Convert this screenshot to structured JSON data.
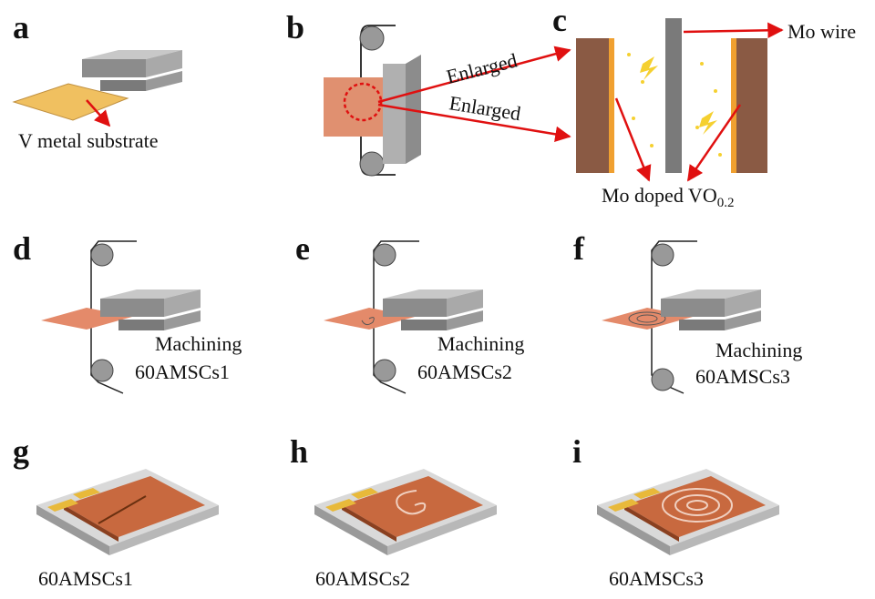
{
  "panels": [
    {
      "label": "a",
      "caption": "V metal substrate"
    },
    {
      "label": "b",
      "annotations": [
        "Enlarged",
        "Enlarged"
      ]
    },
    {
      "label": "c",
      "wire": "Mo wire",
      "product": {
        "text": "Mo doped VO",
        "subscript": "0.2"
      }
    },
    {
      "label": "d",
      "process": "Machining",
      "product": "60AMSCs1"
    },
    {
      "label": "e",
      "process": "Machining",
      "product": "60AMSCs2"
    },
    {
      "label": "f",
      "process": "Machining",
      "product": "60AMSCs3"
    },
    {
      "label": "g",
      "caption": "60AMSCs1"
    },
    {
      "label": "h",
      "caption": "60AMSCs2"
    },
    {
      "label": "i",
      "caption": "60AMSCs3"
    }
  ]
}
